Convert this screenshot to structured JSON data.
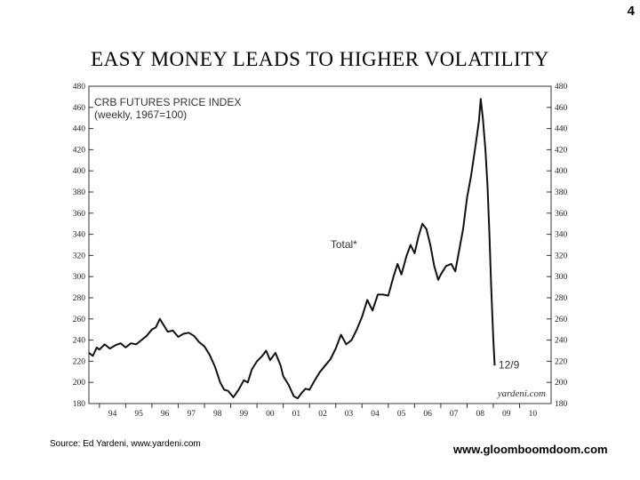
{
  "slide": {
    "page_number": "4",
    "title": "EASY  MONEY  LEADS  TO  HIGHER  VOLATILITY",
    "source": "Source: Ed Yardeni, www.yardeni.com",
    "website": "www.gloomboomdoom.com"
  },
  "chart_data": {
    "type": "line",
    "title": "CRB FUTURES PRICE INDEX",
    "subtitle": "(weekly, 1967=100)",
    "series": [
      {
        "name": "Total*",
        "points": [
          [
            1993.6,
            228
          ],
          [
            1993.75,
            225
          ],
          [
            1993.9,
            233
          ],
          [
            1994.0,
            231
          ],
          [
            1994.2,
            236
          ],
          [
            1994.4,
            232
          ],
          [
            1994.6,
            235
          ],
          [
            1994.8,
            237
          ],
          [
            1995.0,
            233
          ],
          [
            1995.2,
            237
          ],
          [
            1995.4,
            236
          ],
          [
            1995.6,
            240
          ],
          [
            1995.8,
            244
          ],
          [
            1996.0,
            250
          ],
          [
            1996.15,
            252
          ],
          [
            1996.3,
            260
          ],
          [
            1996.45,
            254
          ],
          [
            1996.6,
            248
          ],
          [
            1996.8,
            249
          ],
          [
            1997.0,
            243
          ],
          [
            1997.2,
            246
          ],
          [
            1997.4,
            247
          ],
          [
            1997.6,
            244
          ],
          [
            1997.8,
            238
          ],
          [
            1998.0,
            234
          ],
          [
            1998.2,
            226
          ],
          [
            1998.4,
            215
          ],
          [
            1998.6,
            200
          ],
          [
            1998.75,
            193
          ],
          [
            1998.9,
            192
          ],
          [
            1999.1,
            186
          ],
          [
            1999.3,
            193
          ],
          [
            1999.5,
            202
          ],
          [
            1999.65,
            200
          ],
          [
            1999.8,
            212
          ],
          [
            2000.0,
            220
          ],
          [
            2000.2,
            225
          ],
          [
            2000.35,
            230
          ],
          [
            2000.5,
            221
          ],
          [
            2000.7,
            228
          ],
          [
            2000.9,
            216
          ],
          [
            2001.0,
            206
          ],
          [
            2001.2,
            198
          ],
          [
            2001.4,
            187
          ],
          [
            2001.55,
            185
          ],
          [
            2001.7,
            190
          ],
          [
            2001.85,
            194
          ],
          [
            2002.0,
            193
          ],
          [
            2002.2,
            202
          ],
          [
            2002.4,
            210
          ],
          [
            2002.6,
            216
          ],
          [
            2002.8,
            222
          ],
          [
            2003.0,
            232
          ],
          [
            2003.2,
            245
          ],
          [
            2003.4,
            236
          ],
          [
            2003.6,
            240
          ],
          [
            2003.8,
            250
          ],
          [
            2004.0,
            262
          ],
          [
            2004.2,
            278
          ],
          [
            2004.4,
            268
          ],
          [
            2004.6,
            283
          ],
          [
            2004.8,
            283
          ],
          [
            2005.0,
            282
          ],
          [
            2005.2,
            300
          ],
          [
            2005.35,
            312
          ],
          [
            2005.5,
            302
          ],
          [
            2005.7,
            320
          ],
          [
            2005.85,
            330
          ],
          [
            2006.0,
            322
          ],
          [
            2006.15,
            338
          ],
          [
            2006.3,
            350
          ],
          [
            2006.45,
            345
          ],
          [
            2006.6,
            330
          ],
          [
            2006.75,
            310
          ],
          [
            2006.9,
            297
          ],
          [
            2007.0,
            302
          ],
          [
            2007.2,
            310
          ],
          [
            2007.4,
            312
          ],
          [
            2007.55,
            305
          ],
          [
            2007.7,
            325
          ],
          [
            2007.85,
            345
          ],
          [
            2008.0,
            375
          ],
          [
            2008.15,
            395
          ],
          [
            2008.3,
            420
          ],
          [
            2008.45,
            447
          ],
          [
            2008.52,
            468
          ],
          [
            2008.6,
            450
          ],
          [
            2008.7,
            420
          ],
          [
            2008.78,
            385
          ],
          [
            2008.85,
            340
          ],
          [
            2008.92,
            290
          ],
          [
            2009.0,
            240
          ],
          [
            2009.05,
            216
          ]
        ]
      }
    ],
    "xlim": [
      1993.6,
      2011.2
    ],
    "ylim": [
      180,
      480
    ],
    "yticks": [
      180,
      200,
      220,
      240,
      260,
      280,
      300,
      320,
      340,
      360,
      380,
      400,
      420,
      440,
      460,
      480
    ],
    "xtick_positions": [
      1994,
      1995,
      1996,
      1997,
      1998,
      1999,
      2000,
      2001,
      2002,
      2003,
      2004,
      2005,
      2006,
      2007,
      2008,
      2009,
      2010
    ],
    "xtick_labels": [
      "94",
      "95",
      "96",
      "97",
      "98",
      "99",
      "00",
      "01",
      "02",
      "03",
      "04",
      "05",
      "06",
      "07",
      "08",
      "09",
      "10"
    ],
    "annotations": [
      {
        "text": "Total*",
        "x": 2002.8,
        "y": 327
      },
      {
        "text": "12/9",
        "x": 2009.2,
        "y": 213
      }
    ],
    "credit": "yardeni.com",
    "grid": false,
    "legend": "none",
    "line_color": "#111111"
  }
}
